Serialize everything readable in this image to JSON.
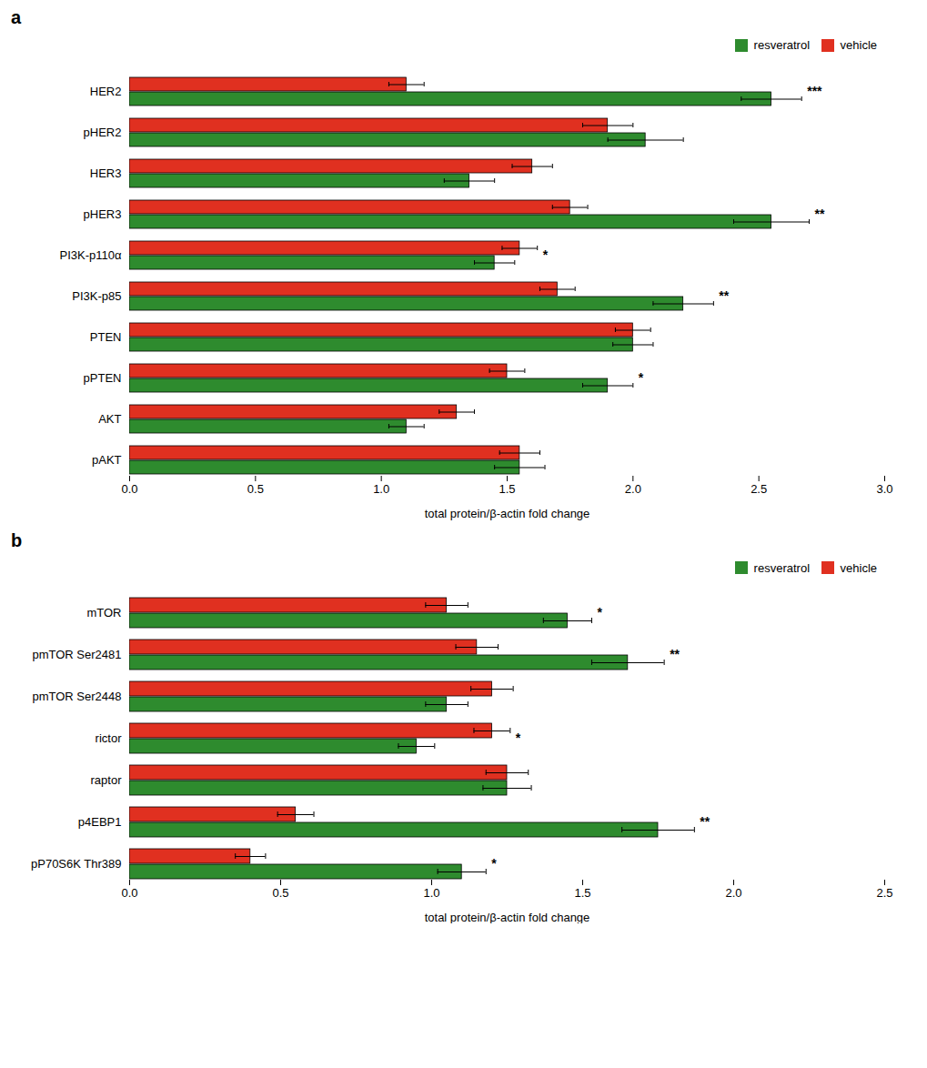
{
  "chart_data": [
    {
      "type": "bar",
      "title": "a",
      "orientation": "horizontal",
      "categories": [
        "HER2",
        "pHER2",
        "HER3",
        "pHER3",
        "PI3K-p110α",
        "PI3K-p85",
        "PTEN",
        "pPTEN",
        "AKT",
        "pAKT"
      ],
      "series": [
        {
          "name": "resveratrol",
          "color": "#2e8b2e",
          "values": [
            2.55,
            2.05,
            1.35,
            2.55,
            1.45,
            2.2,
            2.0,
            1.9,
            1.1,
            1.55
          ],
          "errors": [
            0.12,
            0.15,
            0.1,
            0.15,
            0.08,
            0.12,
            0.08,
            0.1,
            0.07,
            0.1
          ]
        },
        {
          "name": "vehicle",
          "color": "#e03020",
          "values": [
            1.1,
            1.9,
            1.6,
            1.75,
            1.55,
            1.7,
            2.0,
            1.5,
            1.3,
            1.55
          ],
          "errors": [
            0.07,
            0.1,
            0.08,
            0.07,
            0.07,
            0.07,
            0.07,
            0.07,
            0.07,
            0.08
          ]
        }
      ],
      "annotations": [
        {
          "category": "HER2",
          "text": "***"
        },
        {
          "category": "pHER3",
          "text": "**"
        },
        {
          "category": "PI3K-p110α",
          "text": "*"
        },
        {
          "category": "PI3K-p85",
          "text": "**"
        },
        {
          "category": "pPTEN",
          "text": "*"
        }
      ],
      "xlabel": "total protein/β-actin fold change",
      "xlim": [
        0.0,
        3.0
      ],
      "xticks": [
        {
          "value": 0.0,
          "label": "0.0"
        },
        0.5,
        {
          "value": 1.0,
          "label": "1.0"
        },
        1.5,
        {
          "value": 2.0,
          "label": "2.0"
        },
        2.5,
        {
          "value": 3.0,
          "label": "3.0"
        }
      ],
      "legend": "upper right",
      "grid": false
    },
    {
      "type": "bar",
      "title": "b",
      "orientation": "horizontal",
      "categories": [
        "mTOR",
        "pmTOR Ser2481",
        "pmTOR Ser2448",
        "rictor",
        "raptor",
        "p4EBP1",
        "pP70S6K Thr389"
      ],
      "series": [
        {
          "name": "resveratrol",
          "color": "#2e8b2e",
          "values": [
            1.45,
            1.65,
            1.05,
            0.95,
            1.25,
            1.75,
            1.1
          ],
          "errors": [
            0.08,
            0.12,
            0.07,
            0.06,
            0.08,
            0.12,
            0.08
          ]
        },
        {
          "name": "vehicle",
          "color": "#e03020",
          "values": [
            1.05,
            1.15,
            1.2,
            1.2,
            1.25,
            0.55,
            0.4
          ],
          "errors": [
            0.07,
            0.07,
            0.07,
            0.06,
            0.07,
            0.06,
            0.05
          ]
        }
      ],
      "annotations": [
        {
          "category": "mTOR",
          "text": "*"
        },
        {
          "category": "pmTOR Ser2481",
          "text": "**"
        },
        {
          "category": "rictor",
          "text": "*"
        },
        {
          "category": "p4EBP1",
          "text": "**"
        },
        {
          "category": "pP70S6K Thr389",
          "text": "*"
        }
      ],
      "xlabel": "total protein/β-actin fold change",
      "xlim": [
        0.0,
        2.5
      ],
      "xticks": [
        {
          "value": 0.0,
          "label": "0.0"
        },
        0.5,
        {
          "value": 1.0,
          "label": "1.0"
        },
        1.5,
        {
          "value": 2.0,
          "label": "2.0"
        },
        2.5
      ],
      "legend": "upper right",
      "grid": false
    }
  ]
}
